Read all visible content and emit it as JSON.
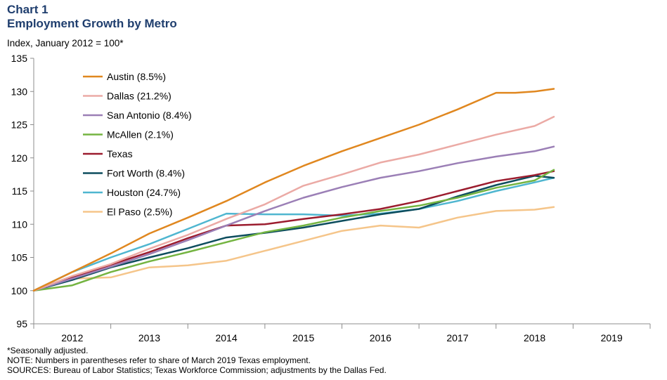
{
  "header": {
    "title": "Chart 1",
    "subtitle": "Employment Growth by Metro",
    "unit": "Index, January 2012 = 100*"
  },
  "notes": [
    "*Seasonally adjusted.",
    "NOTE: Numbers in parentheses refer to share of March 2019 Texas employment.",
    "SOURCES: Bureau of Labor Statistics; Texas Workforce Commission; adjustments by the Dallas Fed."
  ],
  "chart_data": {
    "type": "line",
    "ylim": [
      95,
      135
    ],
    "yticks": [
      95,
      100,
      105,
      110,
      115,
      120,
      125,
      130,
      135
    ],
    "xlim": [
      2012.0,
      2020.0
    ],
    "xticks": [
      "2012",
      "2013",
      "2014",
      "2015",
      "2016",
      "2017",
      "2018",
      "2019"
    ],
    "legend_position": "top-left",
    "grid": false,
    "series": [
      {
        "name": "Austin (8.5%)",
        "color": "#e0871f",
        "points": [
          [
            2012.0,
            100
          ],
          [
            2012.5,
            102.8
          ],
          [
            2013.0,
            105.6
          ],
          [
            2013.5,
            108.6
          ],
          [
            2014.0,
            111.0
          ],
          [
            2014.5,
            113.5
          ],
          [
            2015.0,
            116.3
          ],
          [
            2015.5,
            118.8
          ],
          [
            2016.0,
            121.0
          ],
          [
            2016.5,
            123.0
          ],
          [
            2017.0,
            125.0
          ],
          [
            2017.5,
            127.3
          ],
          [
            2018.0,
            129.8
          ],
          [
            2018.25,
            129.8
          ],
          [
            2018.5,
            130.0
          ],
          [
            2018.75,
            130.4
          ]
        ]
      },
      {
        "name": "Dallas (21.2%)",
        "color": "#ebaaa5",
        "points": [
          [
            2012.0,
            100
          ],
          [
            2012.5,
            102.2
          ],
          [
            2013.0,
            104.0
          ],
          [
            2013.5,
            106.3
          ],
          [
            2014.0,
            108.4
          ],
          [
            2014.5,
            110.8
          ],
          [
            2015.0,
            113.0
          ],
          [
            2015.5,
            115.8
          ],
          [
            2016.0,
            117.5
          ],
          [
            2016.5,
            119.3
          ],
          [
            2017.0,
            120.5
          ],
          [
            2017.5,
            122.0
          ],
          [
            2018.0,
            123.5
          ],
          [
            2018.5,
            124.8
          ],
          [
            2018.75,
            126.2
          ]
        ]
      },
      {
        "name": "San Antonio (8.4%)",
        "color": "#9b7fb6",
        "points": [
          [
            2012.0,
            100
          ],
          [
            2012.5,
            101.8
          ],
          [
            2013.0,
            103.6
          ],
          [
            2013.5,
            105.5
          ],
          [
            2014.0,
            107.6
          ],
          [
            2014.5,
            109.8
          ],
          [
            2015.0,
            112.0
          ],
          [
            2015.5,
            114.0
          ],
          [
            2016.0,
            115.6
          ],
          [
            2016.5,
            117.0
          ],
          [
            2017.0,
            118.0
          ],
          [
            2017.5,
            119.2
          ],
          [
            2018.0,
            120.2
          ],
          [
            2018.5,
            121.0
          ],
          [
            2018.75,
            121.7
          ]
        ]
      },
      {
        "name": "McAllen (2.1%)",
        "color": "#74b441",
        "points": [
          [
            2012.0,
            100
          ],
          [
            2012.5,
            100.8
          ],
          [
            2013.0,
            102.8
          ],
          [
            2013.5,
            104.4
          ],
          [
            2014.0,
            105.8
          ],
          [
            2014.5,
            107.3
          ],
          [
            2015.0,
            108.8
          ],
          [
            2015.5,
            109.8
          ],
          [
            2016.0,
            111.0
          ],
          [
            2016.5,
            112.0
          ],
          [
            2017.0,
            112.8
          ],
          [
            2017.5,
            114.0
          ],
          [
            2018.0,
            115.5
          ],
          [
            2018.5,
            116.6
          ],
          [
            2018.75,
            118.2
          ]
        ]
      },
      {
        "name": "Texas",
        "color": "#9b1c2e",
        "points": [
          [
            2012.0,
            100
          ],
          [
            2012.5,
            102.0
          ],
          [
            2013.0,
            103.9
          ],
          [
            2013.5,
            105.8
          ],
          [
            2014.0,
            107.9
          ],
          [
            2014.5,
            109.8
          ],
          [
            2015.0,
            110.0
          ],
          [
            2015.5,
            110.8
          ],
          [
            2016.0,
            111.5
          ],
          [
            2016.5,
            112.3
          ],
          [
            2017.0,
            113.5
          ],
          [
            2017.5,
            115.0
          ],
          [
            2018.0,
            116.5
          ],
          [
            2018.5,
            117.4
          ],
          [
            2018.75,
            118.0
          ]
        ]
      },
      {
        "name": "Fort Worth (8.4%)",
        "color": "#0d4d5e",
        "points": [
          [
            2012.0,
            100
          ],
          [
            2012.5,
            101.6
          ],
          [
            2013.0,
            103.5
          ],
          [
            2013.5,
            105.0
          ],
          [
            2014.0,
            106.4
          ],
          [
            2014.5,
            108.0
          ],
          [
            2015.0,
            108.7
          ],
          [
            2015.5,
            109.5
          ],
          [
            2016.0,
            110.5
          ],
          [
            2016.5,
            111.5
          ],
          [
            2017.0,
            112.3
          ],
          [
            2017.5,
            114.2
          ],
          [
            2018.0,
            115.9
          ],
          [
            2018.5,
            117.3
          ],
          [
            2018.75,
            117.0
          ]
        ]
      },
      {
        "name": "Houston (24.7%)",
        "color": "#4fb6d0",
        "points": [
          [
            2012.0,
            100
          ],
          [
            2012.5,
            102.8
          ],
          [
            2013.0,
            105.0
          ],
          [
            2013.5,
            107.0
          ],
          [
            2014.0,
            109.3
          ],
          [
            2014.5,
            111.6
          ],
          [
            2015.0,
            111.5
          ],
          [
            2015.5,
            111.5
          ],
          [
            2016.0,
            111.3
          ],
          [
            2016.5,
            111.6
          ],
          [
            2017.0,
            112.3
          ],
          [
            2017.5,
            113.5
          ],
          [
            2018.0,
            115.0
          ],
          [
            2018.5,
            116.3
          ],
          [
            2018.75,
            117.0
          ]
        ]
      },
      {
        "name": "El Paso (2.5%)",
        "color": "#f5c58a",
        "points": [
          [
            2012.0,
            100
          ],
          [
            2012.5,
            101.8
          ],
          [
            2013.0,
            102.0
          ],
          [
            2013.5,
            103.5
          ],
          [
            2014.0,
            103.8
          ],
          [
            2014.5,
            104.5
          ],
          [
            2015.0,
            106.0
          ],
          [
            2015.5,
            107.5
          ],
          [
            2016.0,
            109.0
          ],
          [
            2016.5,
            109.8
          ],
          [
            2017.0,
            109.5
          ],
          [
            2017.5,
            111.0
          ],
          [
            2018.0,
            112.0
          ],
          [
            2018.5,
            112.2
          ],
          [
            2018.75,
            112.6
          ]
        ]
      }
    ]
  }
}
